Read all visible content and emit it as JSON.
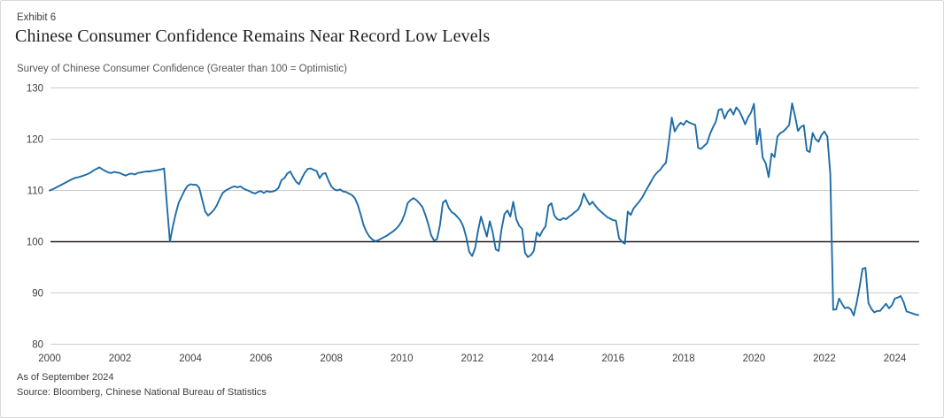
{
  "panel": {
    "exhibit_label": "Exhibit 6",
    "title": "Chinese Consumer Confidence Remains Near Record Low Levels",
    "subtitle": "Survey of Chinese Consumer Confidence (Greater than 100 = Optimistic)",
    "as_of": "As of September 2024",
    "source": "Source: Bloomberg, Chinese National Bureau of Statistics"
  },
  "colors": {
    "line": "#1E6CA6",
    "grid": "#cccccc",
    "baseline": "#231f20",
    "tick_text": "#414042"
  },
  "chart_data": {
    "type": "line",
    "title": "Chinese Consumer Confidence Remains Near Record Low Levels",
    "subtitle": "Survey of Chinese Consumer Confidence (Greater than 100 = Optimistic)",
    "xlabel": "",
    "ylabel": "",
    "ylim": [
      80,
      130
    ],
    "y_ticks": [
      130,
      120,
      110,
      100,
      90,
      80
    ],
    "baseline_value": 100,
    "grid": "horizontal",
    "legend_position": "none",
    "frequency": "monthly",
    "x_start": "2000-01",
    "x_end": "2024-09",
    "x_tick_years": [
      2000,
      2002,
      2004,
      2006,
      2008,
      2010,
      2012,
      2014,
      2016,
      2018,
      2020,
      2022,
      2024
    ],
    "series": [
      {
        "name": "Survey of Chinese Consumer Confidence",
        "color": "#1E6CA6",
        "values": [
          110.0,
          110.2,
          110.5,
          110.8,
          111.1,
          111.4,
          111.7,
          112.0,
          112.3,
          112.5,
          112.6,
          112.8,
          113.0,
          113.2,
          113.5,
          113.9,
          114.2,
          114.5,
          114.1,
          113.8,
          113.5,
          113.4,
          113.6,
          113.5,
          113.4,
          113.1,
          112.9,
          113.2,
          113.3,
          113.1,
          113.4,
          113.5,
          113.6,
          113.7,
          113.7,
          113.8,
          113.9,
          114.0,
          114.1,
          114.3,
          107.0,
          100.0,
          103.0,
          105.5,
          107.6,
          108.8,
          110.0,
          110.9,
          111.2,
          111.1,
          111.1,
          110.5,
          108.2,
          105.9,
          105.1,
          105.6,
          106.2,
          107.1,
          108.4,
          109.5,
          110.0,
          110.3,
          110.6,
          110.8,
          110.6,
          110.8,
          110.4,
          110.1,
          109.9,
          109.6,
          109.4,
          109.7,
          109.9,
          109.5,
          109.9,
          109.7,
          109.8,
          110.0,
          110.5,
          112.0,
          112.4,
          113.3,
          113.7,
          112.6,
          111.7,
          111.2,
          112.4,
          113.5,
          114.2,
          114.3,
          114.0,
          113.8,
          112.4,
          113.2,
          113.4,
          112.0,
          110.8,
          110.2,
          110.0,
          110.2,
          109.8,
          109.7,
          109.4,
          109.1,
          108.5,
          107.2,
          105.3,
          103.2,
          101.9,
          101.0,
          100.4,
          100.1,
          100.3,
          100.6,
          100.9,
          101.2,
          101.6,
          102.0,
          102.5,
          103.1,
          104.0,
          105.4,
          107.5,
          108.1,
          108.5,
          108.1,
          107.5,
          106.8,
          105.3,
          103.5,
          101.3,
          100.2,
          100.5,
          103.2,
          107.6,
          108.1,
          106.6,
          105.8,
          105.4,
          104.8,
          104.1,
          102.9,
          100.8,
          98.0,
          97.2,
          98.8,
          102.2,
          104.9,
          102.9,
          101.0,
          104.0,
          101.8,
          98.5,
          98.2,
          102.5,
          105.4,
          106.1,
          104.9,
          107.8,
          104.4,
          103.1,
          102.5,
          97.8,
          97.0,
          97.4,
          98.2,
          101.8,
          101.1,
          102.2,
          103.0,
          107.0,
          107.5,
          105.1,
          104.4,
          104.2,
          104.6,
          104.4,
          104.9,
          105.3,
          105.8,
          106.2,
          107.3,
          109.4,
          108.2,
          107.2,
          107.8,
          107.0,
          106.3,
          105.8,
          105.3,
          104.8,
          104.5,
          104.2,
          104.1,
          100.7,
          100.0,
          99.6,
          105.9,
          105.2,
          106.5,
          107.2,
          107.9,
          108.7,
          109.8,
          110.8,
          111.8,
          112.8,
          113.5,
          114.0,
          114.8,
          115.4,
          119.5,
          124.2,
          121.5,
          122.5,
          123.2,
          122.8,
          123.6,
          123.2,
          123.0,
          122.8,
          118.3,
          118.1,
          118.7,
          119.2,
          121.0,
          122.3,
          123.4,
          125.7,
          125.9,
          124.0,
          125.3,
          125.9,
          124.8,
          126.2,
          125.5,
          124.3,
          122.9,
          124.3,
          125.2,
          126.9,
          119.0,
          122.0,
          116.4,
          115.3,
          112.6,
          117.2,
          116.5,
          120.5,
          121.2,
          121.5,
          122.1,
          122.8,
          127.0,
          124.5,
          121.6,
          122.4,
          122.7,
          117.8,
          117.5,
          121.2,
          120.0,
          119.5,
          120.8,
          121.5,
          120.5,
          113.2,
          86.7,
          86.8,
          88.9,
          87.9,
          87.0,
          87.2,
          86.8,
          85.6,
          88.1,
          91.2,
          94.7,
          94.9,
          88.0,
          86.9,
          86.2,
          86.5,
          86.5,
          87.2,
          87.9,
          87.0,
          87.6,
          88.9,
          89.1,
          89.4,
          88.2,
          86.4,
          86.2,
          86.0,
          85.8,
          85.7
        ]
      }
    ]
  }
}
